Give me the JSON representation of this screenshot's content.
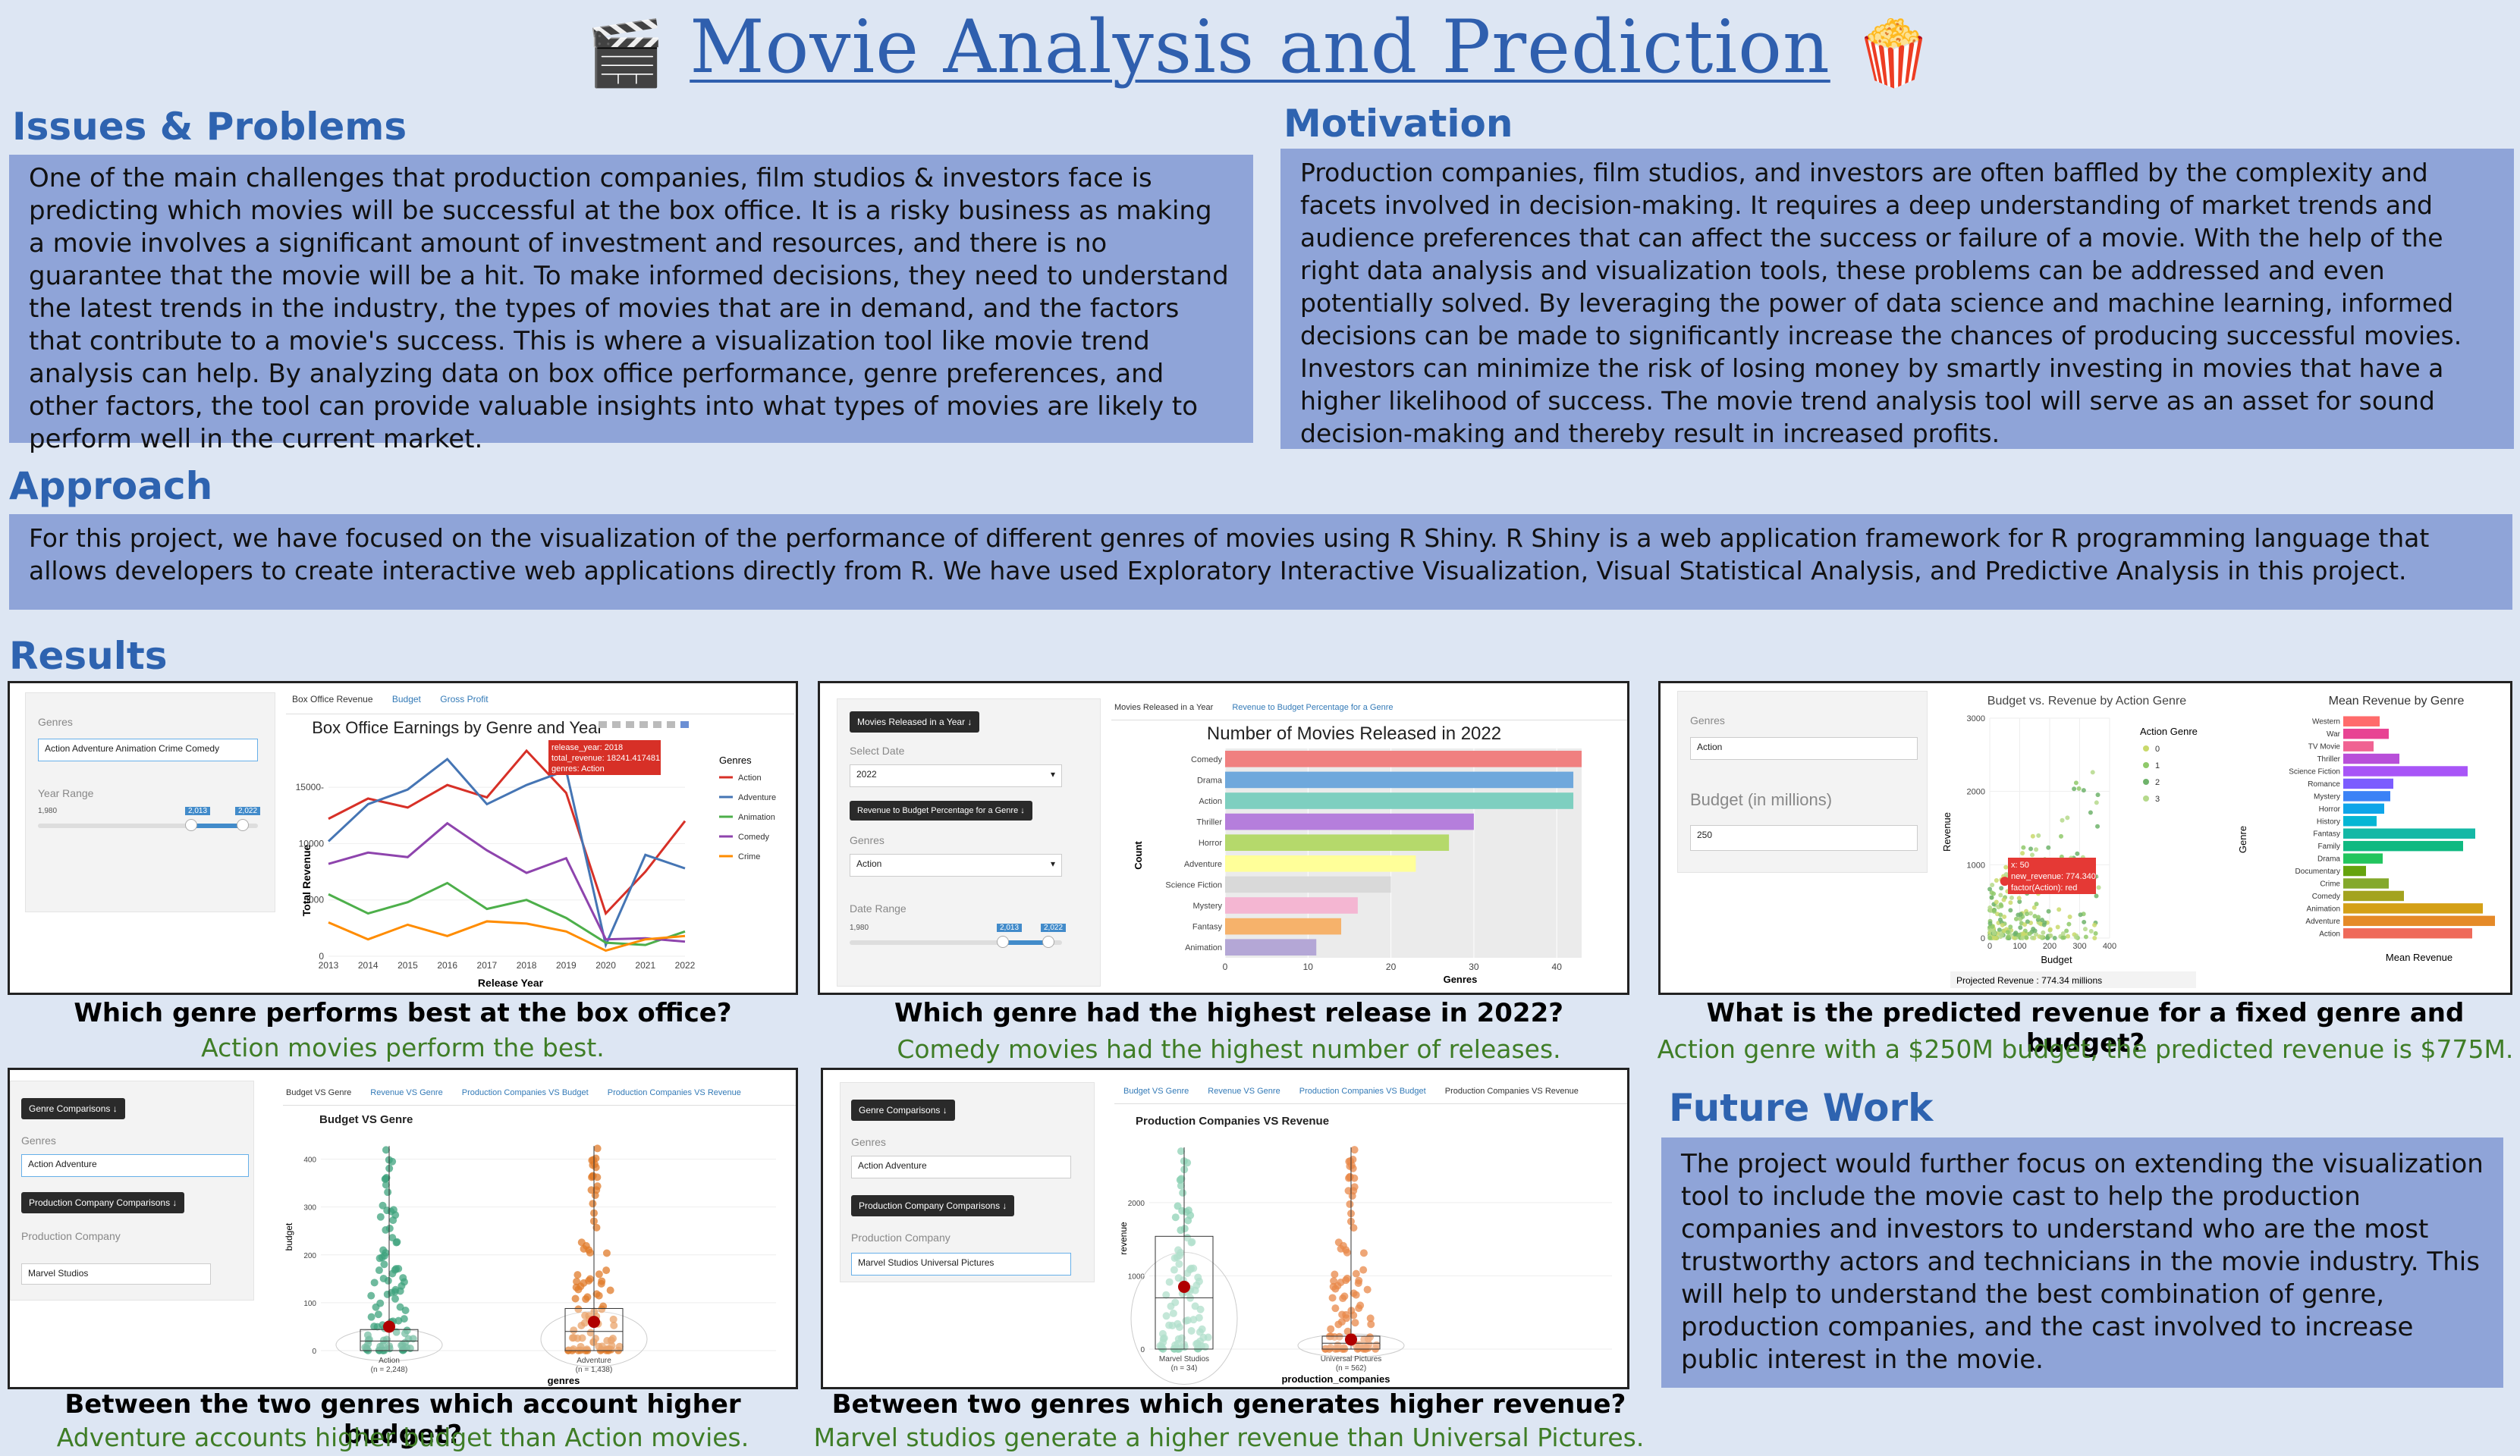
{
  "header": {
    "title": "Movie Analysis and Prediction",
    "left_icon": "clapperboard-icon",
    "right_icon": "popcorn-icon"
  },
  "issues": {
    "heading": "Issues & Problems",
    "text": "One of the main challenges that production companies, film studios & investors face is predicting which movies will be successful at the box office. It is a risky business as making a movie involves a significant amount of investment and resources, and there is no guarantee that the movie will be a hit. To make informed decisions, they need to understand the latest trends in the industry, the types of movies that are in demand, and the factors that contribute to a movie's success. This is where a visualization tool like movie trend analysis can help. By analyzing data on box office performance, genre preferences, and other factors, the tool can provide valuable insights into what types of movies are likely to perform well in the current market."
  },
  "motivation": {
    "heading": "Motivation",
    "text": "Production companies, film studios, and investors are often baffled by the complexity and facets involved in decision-making. It requires a deep understanding of market trends and audience preferences that can affect the success or failure of a movie. With the help of the right data analysis and visualization tools, these problems can be addressed and even potentially solved. By leveraging the power of data science and machine learning, informed decisions can be made to significantly increase the chances of producing successful movies. Investors can minimize the risk of losing money by smartly investing in movies that have a higher likelihood of success. The movie trend analysis tool will serve as an asset for sound decision-making and thereby result in increased profits."
  },
  "approach": {
    "heading": "Approach",
    "text": "For this project, we have focused on the visualization of the performance of different genres of movies using R Shiny. R Shiny is a web application framework for R programming language that allows developers to create interactive web applications directly from R. We have used Exploratory Interactive Visualization, Visual Statistical Analysis, and Predictive Analysis in this project."
  },
  "results": {
    "heading": "Results"
  },
  "future": {
    "heading": "Future Work",
    "text": "The project would further focus on extending the visualization tool to include the movie cast to help the production companies and investors to understand who are the most trustworthy actors and technicians in the movie industry. This will help to understand the best combination of genre, production companies, and the cast involved to increase public interest in the movie."
  },
  "captions": [
    {
      "q": "Which genre performs best at the box office?",
      "a": "Action movies perform the best."
    },
    {
      "q": "Which genre had the highest release in 2022?",
      "a": "Comedy movies had the highest number of releases."
    },
    {
      "q": "What is the predicted revenue for a fixed genre and budget?",
      "a": "Action genre with a $250M budget, the predicted revenue is $775M."
    },
    {
      "q": "Between the two genres which account higher budget?",
      "a": "Adventure accounts higher budget than Action movies."
    },
    {
      "q": "Between two genres which generates higher revenue?",
      "a": "Marvel studios generate a higher revenue than Universal Pictures."
    }
  ],
  "shot1": {
    "sidebar": {
      "genres_label": "Genres",
      "genres_value": "Action  Adventure  Animation  Crime  Comedy",
      "year_label": "Year Range",
      "year_min": "1,980",
      "handle_a": "2,013",
      "handle_b": "2,022"
    },
    "tabs": [
      "Box Office Revenue",
      "Budget",
      "Gross Profit"
    ],
    "tooltip": [
      "release_year: 2018",
      "total_revenue: 18241.417481",
      "genres: Action"
    ]
  },
  "shot2": {
    "sidebar": {
      "btn1": "Movies Released in a Year ↓",
      "date_label": "Select Date",
      "date_value": "2022",
      "btn2": "Revenue to Budget Percentage for a Genre ↓",
      "genres_label": "Genres",
      "genres_value": "Action",
      "range_label": "Date Range",
      "range_min": "1,980",
      "handle_a": "2,013",
      "handle_b": "2,022"
    },
    "tabs": [
      "Movies Released in a Year",
      "Revenue to Budget Percentage for a Genre"
    ]
  },
  "shot3": {
    "sidebar": {
      "genres_label": "Genres",
      "genres_value": "Action",
      "budget_label": "Budget (in millions)",
      "budget_value": "250"
    },
    "tooltip": [
      "x: 50",
      "new_revenue: 774.3401",
      "factor(Action): red"
    ],
    "projected": "Projected Revenue : 774.34 millions",
    "legend_items": [
      "0",
      "1",
      "2",
      "3"
    ]
  },
  "shot4": {
    "sidebar": {
      "btn1": "Genre Comparisons ↓",
      "genres_label": "Genres",
      "genres_value": "Action  Adventure",
      "btn2": "Production Company Comparisons ↓",
      "pc_label": "Production Company",
      "pc_value": "Marvel Studios"
    },
    "tabs": [
      "Budget VS Genre",
      "Revenue VS Genre",
      "Production Companies VS Budget",
      "Production Companies VS Revenue"
    ]
  },
  "shot5": {
    "sidebar": {
      "btn1": "Genre Comparisons ↓",
      "genres_label": "Genres",
      "genres_value": "Action  Adventure",
      "btn2": "Production Company Comparisons ↓",
      "pc_label": "Production Company",
      "pc_value": "Marvel Studios  Universal Pictures"
    },
    "tabs": [
      "Budget VS Genre",
      "Revenue VS Genre",
      "Production Companies VS Budget",
      "Production Companies VS Revenue"
    ]
  },
  "chart_data": [
    {
      "type": "line",
      "title": "Box Office Earnings by Genre and Year",
      "xlabel": "Release Year",
      "ylabel": "Total Revenue",
      "x": [
        2013,
        2014,
        2015,
        2016,
        2017,
        2018,
        2019,
        2020,
        2021,
        2022
      ],
      "xlim": [
        2013,
        2022
      ],
      "ylim": [
        0,
        17500
      ],
      "yticks": [
        0,
        5000,
        10000,
        15000
      ],
      "ytick_labels": [
        "0",
        "5000",
        "10000",
        "15000-"
      ],
      "legend_title": "Genres",
      "legend_position": "right",
      "series": [
        {
          "name": "Action",
          "color": "#d73027",
          "values": [
            12200,
            14000,
            13200,
            15200,
            14100,
            18241,
            14500,
            3800,
            7500,
            12000
          ]
        },
        {
          "name": "Adventure",
          "color": "#4575b4",
          "values": [
            10200,
            13500,
            14800,
            17500,
            13500,
            15200,
            16500,
            1000,
            9000,
            7800
          ]
        },
        {
          "name": "Animation",
          "color": "#4daf4a",
          "values": [
            5500,
            3800,
            4800,
            6500,
            4200,
            5000,
            3400,
            1200,
            1000,
            2200
          ]
        },
        {
          "name": "Comedy",
          "color": "#8e44ad",
          "values": [
            8200,
            9200,
            8800,
            11800,
            9400,
            7400,
            8700,
            1500,
            1600,
            1300
          ]
        },
        {
          "name": "Crime",
          "color": "#ff8c00",
          "values": [
            3000,
            1500,
            2800,
            1800,
            3100,
            2900,
            2200,
            500,
            1500,
            1800
          ]
        }
      ]
    },
    {
      "type": "bar",
      "orientation": "horizontal",
      "title": "Number of Movies Released in 2022",
      "xlabel": "Genres",
      "ylabel": "Count",
      "xlim": [
        0,
        43
      ],
      "xticks": [
        0,
        10,
        20,
        30,
        40
      ],
      "categories": [
        "Comedy",
        "Drama",
        "Action",
        "Thriller",
        "Horror",
        "Adventure",
        "Science Fiction",
        "Mystery",
        "Fantasy",
        "Animation"
      ],
      "values": [
        43,
        42,
        42,
        30,
        27,
        23,
        20,
        16,
        14,
        11
      ],
      "colors": [
        "#f08080",
        "#6fa8dc",
        "#7ecfc0",
        "#b57edc",
        "#b5d96b",
        "#ffff99",
        "#d9d9d9",
        "#f4b6d2",
        "#f6b26b",
        "#b4a7d6"
      ]
    },
    {
      "type": "scatter",
      "title": "Budget vs. Revenue by Action Genre",
      "xlabel": "Budget",
      "ylabel": "Revenue",
      "xlim": [
        0,
        400
      ],
      "ylim": [
        0,
        3000
      ],
      "xticks": [
        0,
        100,
        200,
        300,
        400
      ],
      "yticks": [
        0,
        1000,
        2000,
        3000
      ],
      "legend_title": "Action Genre",
      "highlight": {
        "x": 50,
        "y": 774.3401
      }
    },
    {
      "type": "bar",
      "orientation": "horizontal",
      "title": "Mean Revenue by Genre",
      "xlabel": "Mean Revenue",
      "ylabel": "Genre",
      "categories": [
        "Western",
        "War",
        "TV Movie",
        "Thriller",
        "Science Fiction",
        "Romance",
        "Mystery",
        "Horror",
        "History",
        "Fantasy",
        "Family",
        "Drama",
        "Documentary",
        "Crime",
        "Comedy",
        "Animation",
        "Adventure",
        "Action"
      ],
      "values": [
        24,
        30,
        20,
        37,
        82,
        33,
        31,
        27,
        22,
        87,
        79,
        26,
        15,
        30,
        40,
        92,
        100,
        85
      ],
      "colors": [
        "#ff6b6b",
        "#e84393",
        "#f06292",
        "#b84fd9",
        "#a855f7",
        "#7c5cff",
        "#3b82f6",
        "#0ea5e9",
        "#06b6d4",
        "#14b8a6",
        "#10b981",
        "#22c55e",
        "#65a30d",
        "#84a92c",
        "#a3a31f",
        "#d4a017",
        "#e58a28",
        "#ef6a5a"
      ]
    },
    {
      "type": "box",
      "title": "Budget VS Genre",
      "xlabel": "genres",
      "ylabel": "budget",
      "ylim": [
        0,
        450
      ],
      "yticks": [
        0,
        100,
        200,
        300,
        400
      ],
      "categories": [
        "Action",
        "Adventure"
      ],
      "counts": [
        "(n = 2,248)",
        "(n = 1,438)"
      ],
      "medians": [
        20,
        40
      ],
      "means": [
        50,
        60
      ]
    },
    {
      "type": "box",
      "title": "Production Companies VS Revenue",
      "xlabel": "production_companies",
      "ylabel": "revenue",
      "ylim": [
        0,
        2900
      ],
      "yticks": [
        0,
        1000,
        2000
      ],
      "categories": [
        "Marvel Studios",
        "Universal Pictures"
      ],
      "counts": [
        "(n = 34)",
        "(n = 562)"
      ],
      "medians": [
        700,
        80
      ],
      "means": [
        850,
        130
      ]
    }
  ]
}
